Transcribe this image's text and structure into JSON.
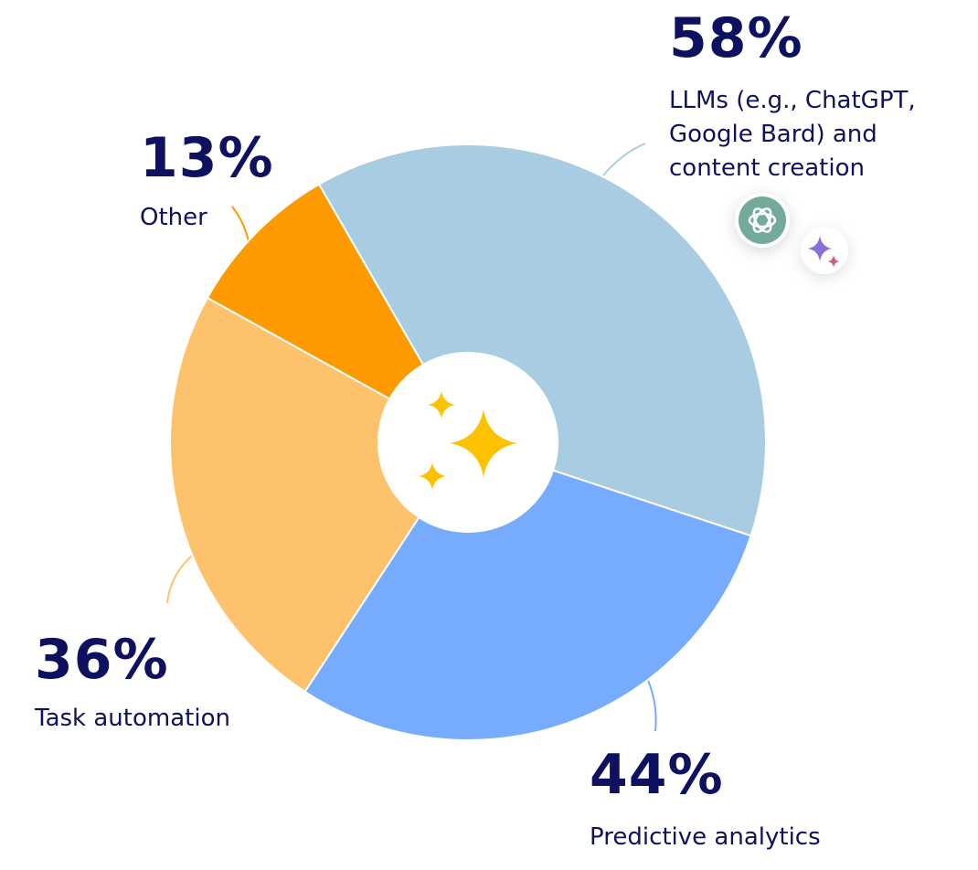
{
  "chart_data": {
    "type": "pie",
    "categories": [
      "LLMs (e.g., ChatGPT, Google Bard) and content creation",
      "Predictive analytics",
      "Task automation",
      "Other"
    ],
    "values": [
      58,
      44,
      36,
      13
    ],
    "value_labels": [
      "58%",
      "44%",
      "36%",
      "13%"
    ],
    "colors": [
      "#a8cde2",
      "#76abfd",
      "#fdc26b",
      "#fd9a00"
    ]
  }
}
